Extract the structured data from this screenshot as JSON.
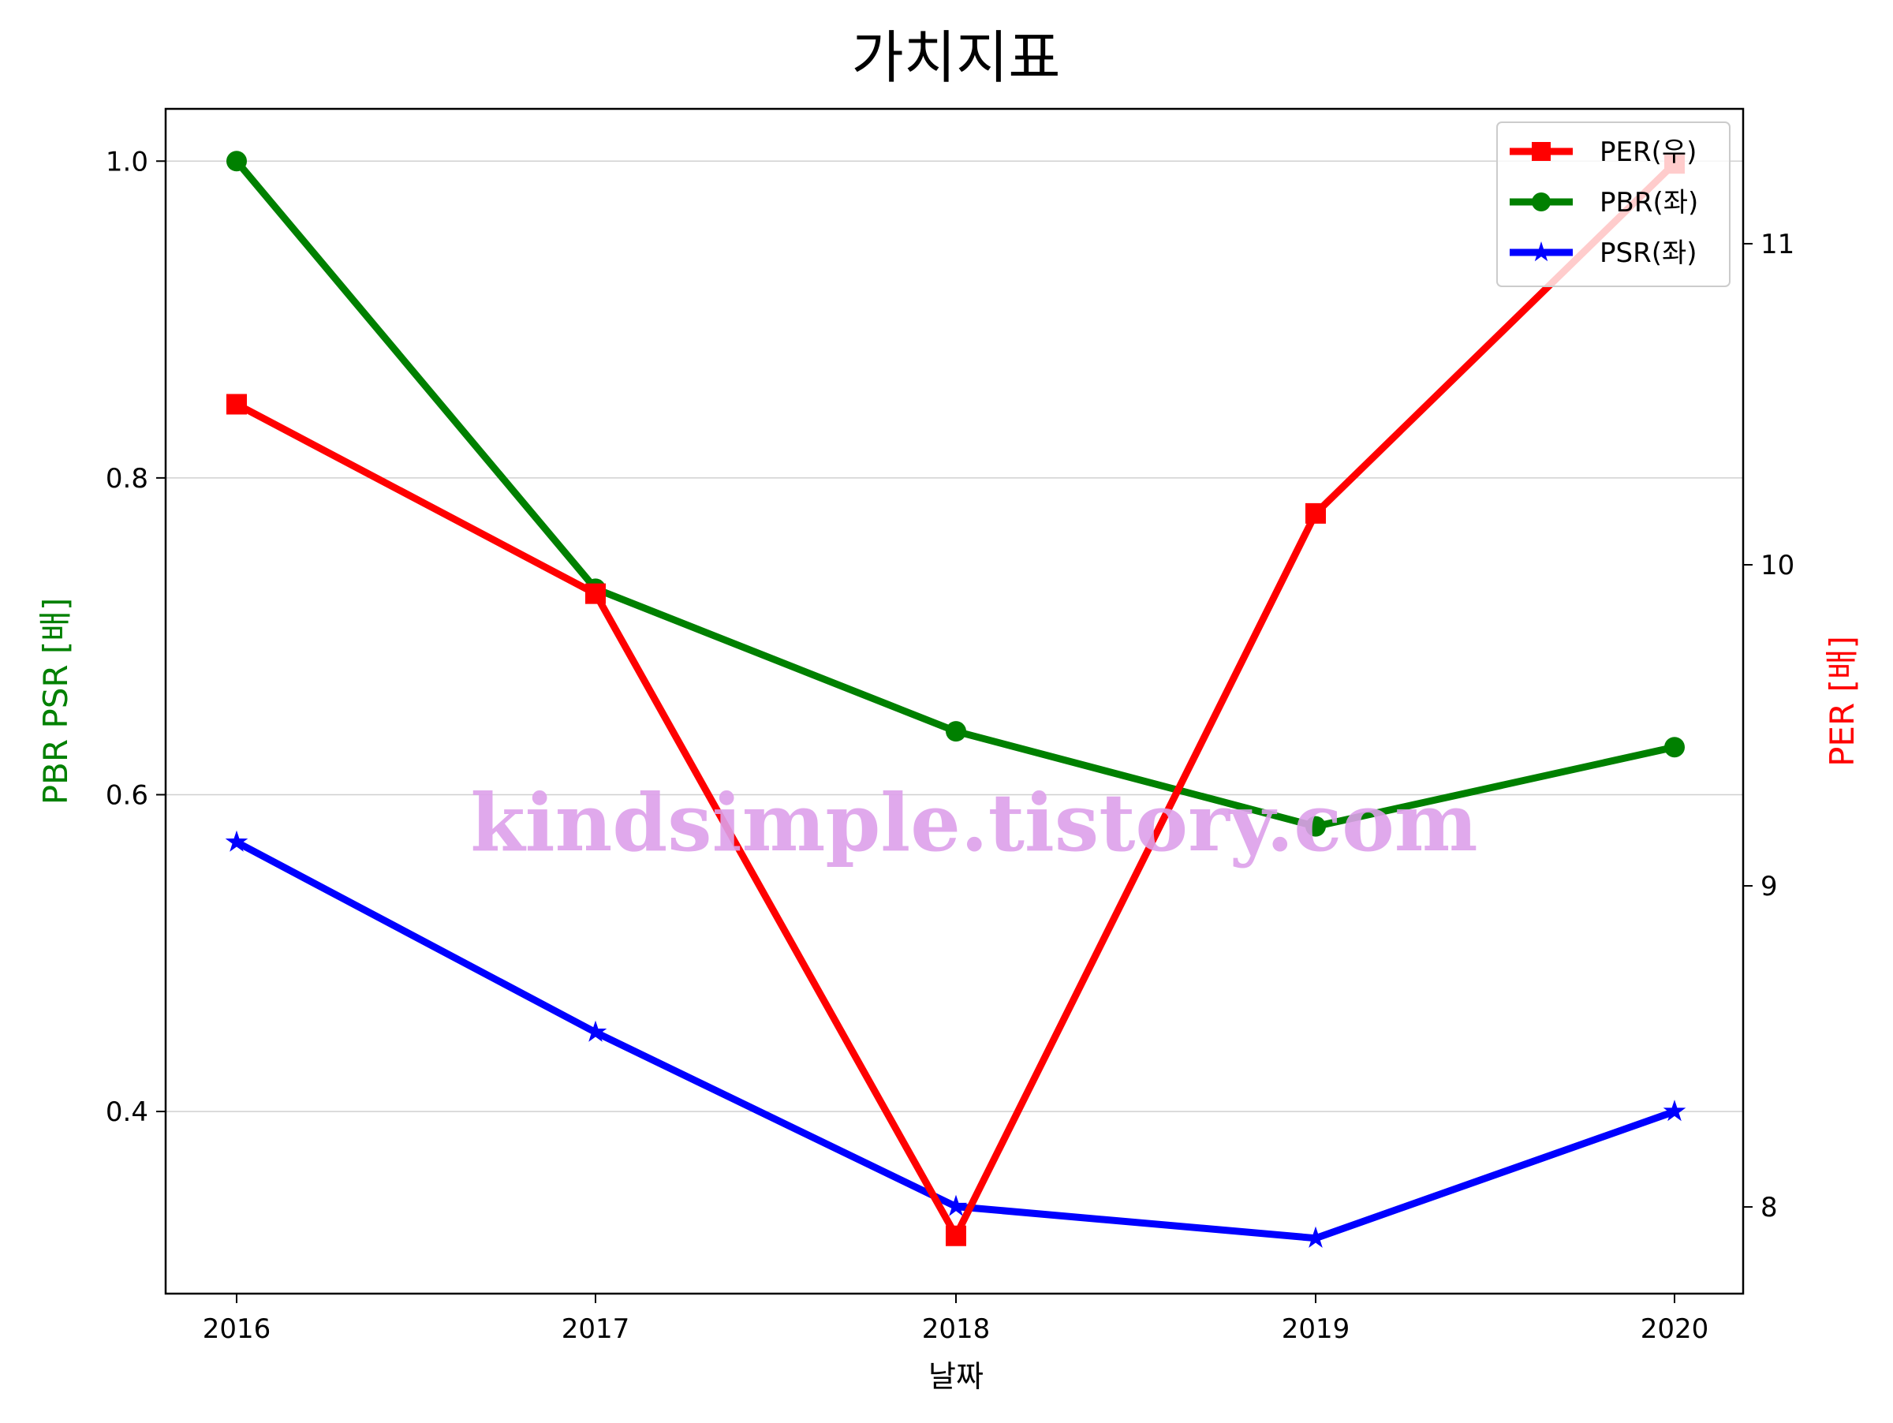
{
  "chart_data": {
    "type": "line",
    "title": "가치지표",
    "xlabel": "날짜",
    "ylabel_left": "PBR PSR [배]",
    "ylabel_right": "PER [배]",
    "categories": [
      "2016",
      "2017",
      "2018",
      "2019",
      "2020"
    ],
    "ylim_left": [
      0.285,
      1.033
    ],
    "ylim_right": [
      7.73,
      11.42
    ],
    "yticks_left": [
      "0.4",
      "0.6",
      "0.8",
      "1.0"
    ],
    "yticks_right": [
      "8",
      "9",
      "10",
      "11"
    ],
    "grid": "horizontal",
    "legend_position": "top-right",
    "series": [
      {
        "name": "PER(우)",
        "axis": "right",
        "marker": "square",
        "color": "#ff0000",
        "values": [
          10.5,
          9.91,
          7.91,
          10.16,
          11.25
        ]
      },
      {
        "name": "PBR(좌)",
        "axis": "left",
        "marker": "circle",
        "color": "#008000",
        "values": [
          1.0,
          0.73,
          0.64,
          0.58,
          0.63
        ]
      },
      {
        "name": "PSR(좌)",
        "axis": "left",
        "marker": "star",
        "color": "#0000ff",
        "values": [
          0.57,
          0.45,
          0.34,
          0.32,
          0.4
        ]
      }
    ],
    "watermark": "kindsimple.tistory.com",
    "colors": {
      "left_axis_label": "#008000",
      "right_axis_label": "#ff0000"
    }
  }
}
